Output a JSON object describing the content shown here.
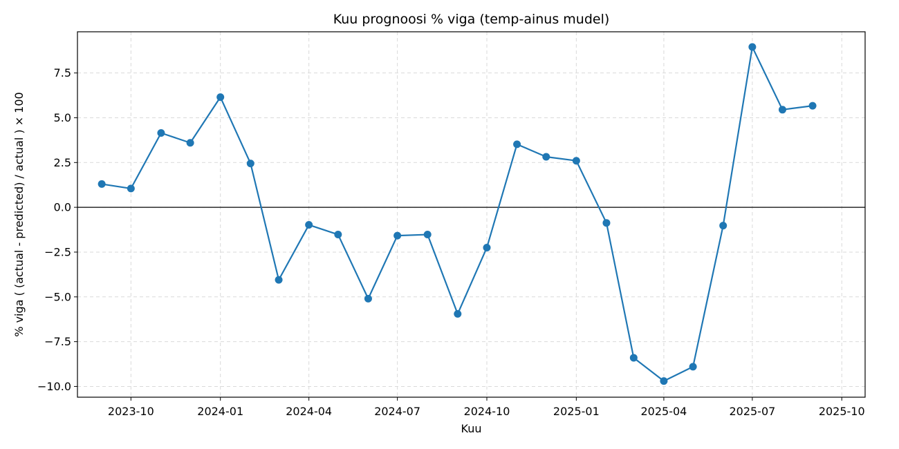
{
  "chart_data": {
    "type": "line",
    "title": "Kuu prognoosi % viga (temp-ainus mudel)",
    "xlabel": "Kuu",
    "ylabel": "% viga  ( (actual - predicted) / actual ) × 100",
    "xlim": [
      "2023-08-07",
      "2025-10-25"
    ],
    "ylim": [
      -10.6,
      9.8
    ],
    "grid": true,
    "zero_line": true,
    "x_ticks": [
      "2023-10",
      "2024-01",
      "2024-04",
      "2024-07",
      "2024-10",
      "2025-01",
      "2025-04",
      "2025-07",
      "2025-10"
    ],
    "y_ticks": [
      7.5,
      5.0,
      2.5,
      0.0,
      -2.5,
      -5.0,
      -7.5,
      -10.0
    ],
    "series": [
      {
        "color": "#1f77b4",
        "marker": "circle",
        "x": [
          "2023-09-01",
          "2023-10-01",
          "2023-11-01",
          "2023-12-01",
          "2024-01-01",
          "2024-02-01",
          "2024-03-01",
          "2024-04-01",
          "2024-05-01",
          "2024-06-01",
          "2024-07-01",
          "2024-08-01",
          "2024-09-01",
          "2024-10-01",
          "2024-11-01",
          "2024-12-01",
          "2025-01-01",
          "2025-02-01",
          "2025-03-01",
          "2025-04-01",
          "2025-05-01",
          "2025-06-01",
          "2025-07-01",
          "2025-08-01",
          "2025-09-01"
        ],
        "values": [
          1.3,
          1.05,
          4.15,
          3.6,
          6.15,
          2.45,
          -4.05,
          -0.98,
          -1.52,
          -5.1,
          -1.58,
          -1.52,
          -5.95,
          -2.25,
          3.52,
          2.82,
          2.6,
          -0.87,
          -8.4,
          -9.7,
          -8.9,
          -1.02,
          8.95,
          5.45,
          5.67
        ]
      }
    ]
  }
}
